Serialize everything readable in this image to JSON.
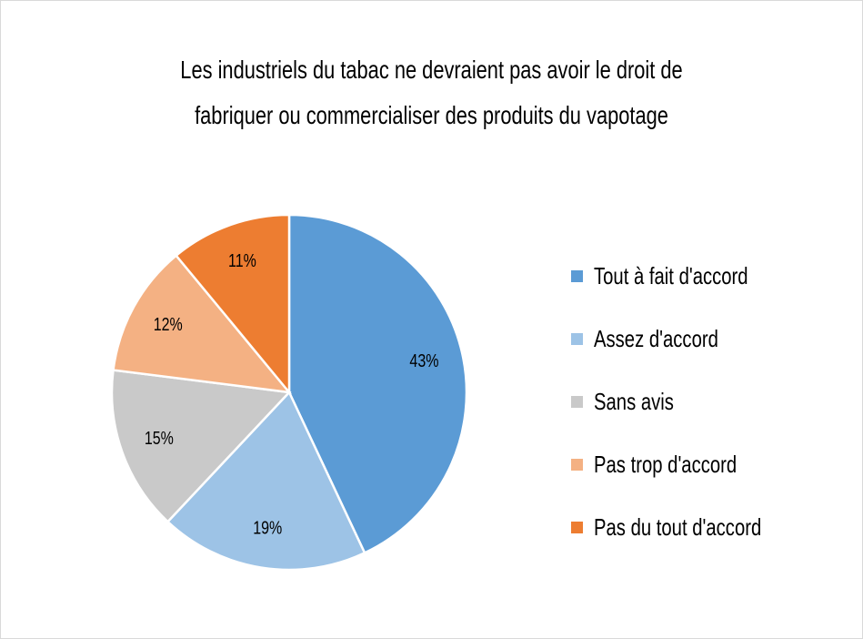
{
  "chart_data": {
    "type": "pie",
    "title_lines": [
      "Les industriels du tabac ne devraient pas avoir le droit de",
      "fabriquer ou commercialiser des produits du vapotage"
    ],
    "categories": [
      "Tout à fait d'accord",
      "Assez d'accord",
      "Sans avis",
      "Pas trop d'accord",
      "Pas du tout d'accord"
    ],
    "values": [
      43,
      19,
      15,
      12,
      11
    ],
    "data_labels": [
      "43%",
      "19%",
      "15%",
      "12%",
      "11%"
    ],
    "colors": [
      "#5B9BD5",
      "#9DC3E6",
      "#C9C9C9",
      "#F4B183",
      "#ED7D31"
    ],
    "legend_position": "right",
    "start_angle": "top, clockwise"
  }
}
